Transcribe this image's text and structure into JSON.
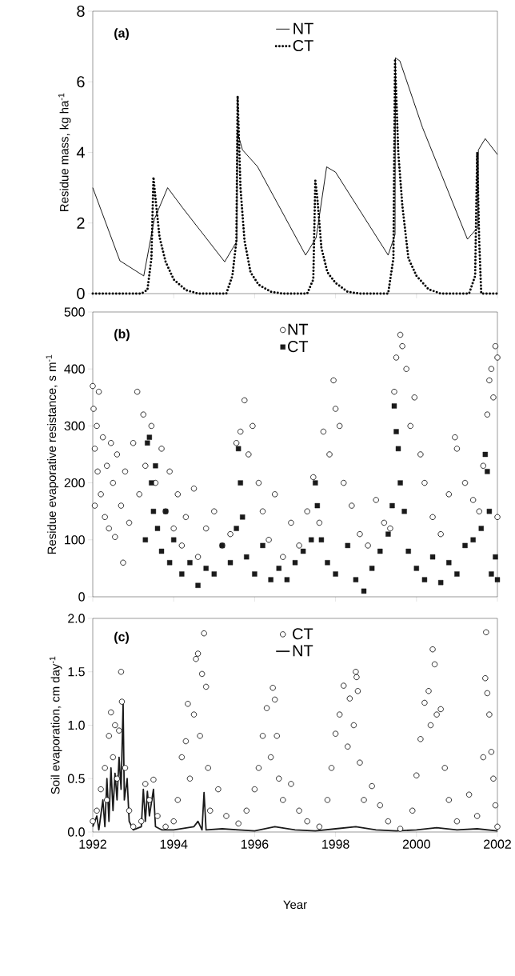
{
  "chart_data": [
    {
      "type": "line",
      "ylabel": "Residue mass, kg ha$^{-1}$",
      "annotations": [
        "(a)"
      ],
      "xlim": [
        1992,
        2002
      ],
      "ylim": [
        0,
        8
      ],
      "xticks": [
        {
          "value": 1992,
          "label": null
        },
        {
          "value": 1994,
          "label": null
        },
        {
          "value": 1996,
          "label": null
        },
        {
          "value": 1998,
          "label": null
        },
        {
          "value": 2000,
          "label": null
        },
        {
          "value": 2002,
          "label": null
        }
      ],
      "yticks": [
        0,
        2,
        4,
        6,
        8
      ],
      "tick_labels": "y",
      "legend": "top",
      "grid": false,
      "series": [
        {
          "name": "NT",
          "color": "#000000",
          "line_style": "solid",
          "marker": "none",
          "x": [
            1992.0,
            1992.67,
            1993.26,
            1993.52,
            1993.85,
            1994.22,
            1995.26,
            1995.56,
            1995.57,
            1995.7,
            1996.07,
            1997.26,
            1997.52,
            1997.78,
            1998.0,
            1999.3,
            1999.47,
            1999.48,
            1999.59,
            2000.15,
            2001.26,
            2001.52,
            2001.53,
            2001.7,
            2002.0
          ],
          "values": [
            3.0,
            0.93,
            0.5,
            2.1,
            3.0,
            2.43,
            0.9,
            1.48,
            4.6,
            4.07,
            3.6,
            1.09,
            1.58,
            3.59,
            3.44,
            1.09,
            1.67,
            6.68,
            6.59,
            4.7,
            1.54,
            1.88,
            4.07,
            4.39,
            3.94
          ]
        },
        {
          "name": "CT",
          "color": "#000000",
          "line_style": "dotted",
          "marker": "none",
          "x": [
            1992.0,
            1993.2,
            1993.35,
            1993.45,
            1993.5,
            1993.55,
            1993.65,
            1993.8,
            1994.0,
            1994.3,
            1994.6,
            1995.3,
            1995.45,
            1995.55,
            1995.58,
            1995.65,
            1995.75,
            1995.9,
            1996.1,
            1996.4,
            1996.7,
            1997.3,
            1997.45,
            1997.5,
            1997.55,
            1997.65,
            1997.8,
            1998.0,
            1998.3,
            1998.6,
            1999.3,
            1999.43,
            1999.47,
            1999.55,
            1999.65,
            1999.8,
            2000.0,
            2000.3,
            2000.6,
            2001.3,
            2001.45,
            2001.5,
            2001.55,
            2001.6,
            2002.0
          ],
          "values": [
            0,
            0,
            0.1,
            1.0,
            3.3,
            2.7,
            1.6,
            0.9,
            0.4,
            0.1,
            0,
            0,
            0.5,
            1.5,
            5.6,
            3.0,
            1.5,
            0.6,
            0.25,
            0.05,
            0,
            0,
            0.4,
            3.2,
            2.7,
            1.3,
            0.6,
            0.3,
            0.05,
            0,
            0,
            1.0,
            6.6,
            4.0,
            2.5,
            1.0,
            0.5,
            0.12,
            0,
            0,
            0.5,
            4.0,
            1.5,
            0,
            0
          ]
        }
      ]
    },
    {
      "type": "scatter",
      "ylabel": "Residue evaporative resistance, s m$^{-1}$",
      "annotations": [
        "(b)"
      ],
      "xlim": [
        1992,
        2002
      ],
      "ylim": [
        0,
        500
      ],
      "xticks": [
        {
          "value": 1992,
          "label": null
        },
        {
          "value": 1994,
          "label": null
        },
        {
          "value": 1996,
          "label": null
        },
        {
          "value": 1998,
          "label": null
        },
        {
          "value": 2000,
          "label": null
        },
        {
          "value": 2002,
          "label": null
        }
      ],
      "yticks": [
        0,
        100,
        200,
        300,
        400,
        500
      ],
      "tick_labels": "y",
      "legend": "top",
      "grid": false,
      "series": [
        {
          "name": "NT",
          "color": "#000000",
          "marker": "circle",
          "x": [
            1992.0,
            1992.02,
            1992.05,
            1992.05,
            1992.1,
            1992.12,
            1992.15,
            1992.2,
            1992.25,
            1992.3,
            1992.35,
            1992.4,
            1992.45,
            1992.5,
            1992.55,
            1992.6,
            1992.7,
            1992.75,
            1992.8,
            1992.9,
            1993.0,
            1993.1,
            1993.15,
            1993.25,
            1993.3,
            1993.45,
            1993.55,
            1993.7,
            1993.8,
            1993.9,
            1994.0,
            1994.1,
            1994.2,
            1994.3,
            1994.5,
            1994.6,
            1994.8,
            1995.0,
            1995.2,
            1995.4,
            1995.55,
            1995.65,
            1995.75,
            1995.85,
            1995.95,
            1996.1,
            1996.2,
            1996.35,
            1996.5,
            1996.7,
            1996.9,
            1997.1,
            1997.3,
            1997.45,
            1997.6,
            1997.7,
            1997.85,
            1997.95,
            1998.0,
            1998.1,
            1998.2,
            1998.4,
            1998.6,
            1998.8,
            1999.0,
            1999.2,
            1999.35,
            1999.45,
            1999.5,
            1999.6,
            1999.65,
            1999.75,
            1999.85,
            1999.95,
            2000.1,
            2000.2,
            2000.4,
            2000.6,
            2000.8,
            2000.95,
            2001.0,
            2001.2,
            2001.4,
            2001.55,
            2001.65,
            2001.75,
            2001.8,
            2001.85,
            2001.9,
            2001.95,
            2002.0,
            2002.0
          ],
          "values": [
            370,
            330,
            260,
            160,
            300,
            220,
            360,
            180,
            280,
            140,
            230,
            120,
            270,
            200,
            105,
            250,
            160,
            60,
            220,
            130,
            270,
            360,
            180,
            320,
            230,
            300,
            200,
            260,
            150,
            220,
            120,
            180,
            90,
            140,
            190,
            70,
            120,
            150,
            90,
            110,
            270,
            290,
            345,
            250,
            300,
            200,
            150,
            100,
            180,
            70,
            130,
            90,
            150,
            210,
            130,
            290,
            250,
            380,
            330,
            300,
            200,
            160,
            110,
            90,
            170,
            130,
            120,
            360,
            420,
            460,
            440,
            400,
            300,
            350,
            250,
            200,
            140,
            110,
            180,
            280,
            260,
            200,
            170,
            150,
            230,
            320,
            380,
            400,
            350,
            440,
            420,
            140
          ]
        },
        {
          "name": "CT",
          "color": "#1a1a1a",
          "marker": "square",
          "x": [
            1993.3,
            1993.35,
            1993.4,
            1993.45,
            1993.5,
            1993.55,
            1993.6,
            1993.7,
            1993.8,
            1993.9,
            1994.0,
            1994.2,
            1994.4,
            1994.6,
            1994.8,
            1995.0,
            1995.2,
            1995.4,
            1995.55,
            1995.6,
            1995.65,
            1995.7,
            1995.8,
            1996.0,
            1996.2,
            1996.4,
            1996.6,
            1996.8,
            1997.0,
            1997.2,
            1997.4,
            1997.5,
            1997.55,
            1997.65,
            1997.8,
            1998.0,
            1998.3,
            1998.5,
            1998.7,
            1998.9,
            1999.1,
            1999.3,
            1999.4,
            1999.45,
            1999.5,
            1999.55,
            1999.6,
            1999.7,
            1999.8,
            2000.0,
            2000.2,
            2000.4,
            2000.6,
            2000.8,
            2001.0,
            2001.2,
            2001.4,
            2001.6,
            2001.7,
            2001.75,
            2001.8,
            2001.85,
            2001.95,
            2002.0
          ],
          "values": [
            100,
            270,
            280,
            200,
            150,
            230,
            120,
            80,
            150,
            60,
            100,
            40,
            60,
            20,
            50,
            40,
            90,
            60,
            120,
            260,
            200,
            140,
            70,
            40,
            90,
            30,
            50,
            30,
            60,
            80,
            100,
            200,
            160,
            100,
            60,
            40,
            90,
            30,
            10,
            50,
            80,
            110,
            160,
            335,
            290,
            260,
            200,
            150,
            80,
            50,
            30,
            70,
            25,
            60,
            40,
            90,
            100,
            120,
            250,
            220,
            150,
            40,
            70,
            30
          ]
        }
      ]
    },
    {
      "type": "scatter",
      "ylabel": "Soil evaporation, cm day$^{-1}$",
      "xlabel": "Year",
      "annotations": [
        "(c)"
      ],
      "xlim": [
        1992,
        2002
      ],
      "ylim": [
        0,
        2
      ],
      "xticks": [
        1992,
        1994,
        1996,
        1998,
        2000,
        2002
      ],
      "yticks": [
        {
          "value": 0,
          "label": "0.0"
        },
        {
          "value": 0.5,
          "label": "0.5"
        },
        {
          "value": 1,
          "label": "1.0"
        },
        {
          "value": 1.5,
          "label": "1.5"
        },
        {
          "value": 2,
          "label": "2.0"
        }
      ],
      "legend": "top",
      "grid": false,
      "series": [
        {
          "name": "CT",
          "color": "#000000",
          "marker": "circle",
          "x": [
            1992.0,
            1992.1,
            1992.2,
            1992.3,
            1992.35,
            1992.4,
            1992.45,
            1992.5,
            1992.55,
            1992.6,
            1992.65,
            1992.7,
            1992.72,
            1992.8,
            1992.9,
            1993.0,
            1993.2,
            1993.3,
            1993.4,
            1993.5,
            1993.6,
            1993.8,
            1994.0,
            1994.1,
            1994.2,
            1994.3,
            1994.35,
            1994.4,
            1994.5,
            1994.55,
            1994.6,
            1994.65,
            1994.7,
            1994.75,
            1994.8,
            1994.85,
            1994.9,
            1995.1,
            1995.3,
            1995.6,
            1995.8,
            1996.0,
            1996.1,
            1996.2,
            1996.3,
            1996.4,
            1996.45,
            1996.5,
            1996.55,
            1996.6,
            1996.7,
            1996.9,
            1997.1,
            1997.3,
            1997.6,
            1997.8,
            1997.9,
            1998.0,
            1998.1,
            1998.2,
            1998.3,
            1998.35,
            1998.45,
            1998.5,
            1998.52,
            1998.55,
            1998.6,
            1998.7,
            1998.9,
            1999.1,
            1999.3,
            1999.6,
            1999.9,
            2000.0,
            2000.1,
            2000.2,
            2000.3,
            2000.35,
            2000.4,
            2000.45,
            2000.5,
            2000.6,
            2000.7,
            2000.8,
            2001.0,
            2001.3,
            2001.5,
            2001.65,
            2001.7,
            2001.72,
            2001.75,
            2001.8,
            2001.85,
            2001.9,
            2001.95,
            2002.0
          ],
          "values": [
            0.1,
            0.2,
            0.4,
            0.6,
            0.3,
            0.9,
            1.12,
            0.7,
            1.0,
            0.5,
            0.95,
            1.5,
            1.22,
            0.6,
            0.2,
            0.05,
            0.1,
            0.45,
            0.3,
            0.49,
            0.15,
            0.05,
            0.1,
            0.3,
            0.7,
            0.85,
            1.2,
            0.5,
            1.1,
            1.62,
            1.67,
            0.9,
            1.48,
            1.86,
            1.36,
            0.6,
            0.2,
            0.4,
            0.15,
            0.08,
            0.2,
            0.4,
            0.6,
            0.9,
            1.16,
            0.7,
            1.35,
            1.24,
            0.9,
            0.5,
            0.3,
            0.45,
            0.2,
            0.1,
            0.05,
            0.3,
            0.6,
            0.92,
            1.1,
            1.37,
            0.8,
            1.25,
            1.0,
            1.5,
            1.45,
            1.32,
            0.65,
            0.3,
            0.43,
            0.25,
            0.1,
            0.03,
            0.2,
            0.53,
            0.87,
            1.21,
            1.32,
            1.0,
            1.71,
            1.57,
            1.1,
            1.15,
            0.6,
            0.3,
            0.1,
            0.35,
            0.15,
            0.7,
            1.44,
            1.87,
            1.3,
            1.1,
            0.75,
            0.5,
            0.25,
            0.05
          ]
        },
        {
          "name": "NT",
          "type": "line",
          "color": "#1a1a1a",
          "line_style": "solid",
          "marker": "none",
          "x": [
            1992.0,
            1992.1,
            1992.15,
            1992.25,
            1992.3,
            1992.35,
            1992.4,
            1992.45,
            1992.5,
            1992.55,
            1992.6,
            1992.65,
            1992.7,
            1992.75,
            1992.78,
            1992.85,
            1992.9,
            1993.0,
            1993.2,
            1993.25,
            1993.3,
            1993.35,
            1993.4,
            1993.5,
            1993.55,
            1993.7,
            1994.0,
            1994.5,
            1994.6,
            1994.7,
            1994.75,
            1994.8,
            1995.2,
            1995.6,
            1996.0,
            1996.5,
            1997.0,
            1997.5,
            1998.0,
            1998.5,
            1999.0,
            1999.5,
            2000.0,
            2000.5,
            2001.0,
            2001.5,
            2002.0
          ],
          "values": [
            0.05,
            0.15,
            0.02,
            0.3,
            0.05,
            0.5,
            0.1,
            0.6,
            0.2,
            0.55,
            0.3,
            0.7,
            0.4,
            1.2,
            0.3,
            0.5,
            0.1,
            0.02,
            0.05,
            0.4,
            0.1,
            0.38,
            0.15,
            0.4,
            0.05,
            0.02,
            0.02,
            0.05,
            0.1,
            0.02,
            0.37,
            0.02,
            0.03,
            0.02,
            0.01,
            0.05,
            0.02,
            0.01,
            0.03,
            0.05,
            0.02,
            0.01,
            0.02,
            0.04,
            0.02,
            0.03,
            0.01
          ]
        }
      ]
    }
  ]
}
